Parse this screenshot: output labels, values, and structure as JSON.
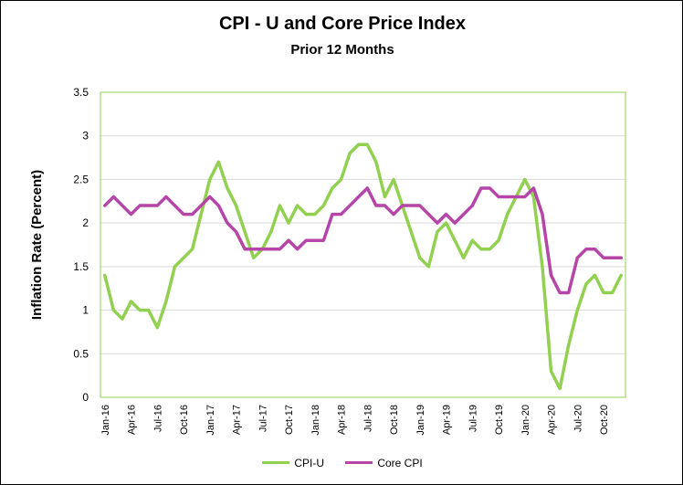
{
  "chart_data": {
    "type": "line",
    "title": "CPI - U and Core Price Index",
    "subtitle": "Prior 12 Months",
    "ylabel": "Inflation Rate (Percent)",
    "xlabel": "",
    "ylim": [
      0,
      3.5
    ],
    "yticks": [
      "0",
      "0.5",
      "1",
      "1.5",
      "2",
      "2.5",
      "3",
      "3.5"
    ],
    "xtick_labels": [
      "Jan-16",
      "Apr-16",
      "Jul-16",
      "Oct-16",
      "Jan-17",
      "Apr-17",
      "Jul-17",
      "Oct-17",
      "Jan-18",
      "Apr-18",
      "Jul-18",
      "Oct-18",
      "Jan-19",
      "Apr-19",
      "Jul-19",
      "Oct-19",
      "Jan-20",
      "Apr-20",
      "Jul-20",
      "Oct-20"
    ],
    "x": [
      "Jan-16",
      "Feb-16",
      "Mar-16",
      "Apr-16",
      "May-16",
      "Jun-16",
      "Jul-16",
      "Aug-16",
      "Sep-16",
      "Oct-16",
      "Nov-16",
      "Dec-16",
      "Jan-17",
      "Feb-17",
      "Mar-17",
      "Apr-17",
      "May-17",
      "Jun-17",
      "Jul-17",
      "Aug-17",
      "Sep-17",
      "Oct-17",
      "Nov-17",
      "Dec-17",
      "Jan-18",
      "Feb-18",
      "Mar-18",
      "Apr-18",
      "May-18",
      "Jun-18",
      "Jul-18",
      "Aug-18",
      "Sep-18",
      "Oct-18",
      "Nov-18",
      "Dec-18",
      "Jan-19",
      "Feb-19",
      "Mar-19",
      "Apr-19",
      "May-19",
      "Jun-19",
      "Jul-19",
      "Aug-19",
      "Sep-19",
      "Oct-19",
      "Nov-19",
      "Dec-19",
      "Jan-20",
      "Feb-20",
      "Mar-20",
      "Apr-20",
      "May-20",
      "Jun-20",
      "Jul-20",
      "Aug-20",
      "Sep-20",
      "Oct-20",
      "Nov-20",
      "Dec-20"
    ],
    "series": [
      {
        "name": "CPI-U",
        "color": "#92D050",
        "values": [
          1.4,
          1.0,
          0.9,
          1.1,
          1.0,
          1.0,
          0.8,
          1.1,
          1.5,
          1.6,
          1.7,
          2.1,
          2.5,
          2.7,
          2.4,
          2.2,
          1.9,
          1.6,
          1.7,
          1.9,
          2.2,
          2.0,
          2.2,
          2.1,
          2.1,
          2.2,
          2.4,
          2.5,
          2.8,
          2.9,
          2.9,
          2.7,
          2.3,
          2.5,
          2.2,
          1.9,
          1.6,
          1.5,
          1.9,
          2.0,
          1.8,
          1.6,
          1.8,
          1.7,
          1.7,
          1.8,
          2.1,
          2.3,
          2.5,
          2.3,
          1.5,
          0.3,
          0.1,
          0.6,
          1.0,
          1.3,
          1.4,
          1.2,
          1.2,
          1.4
        ]
      },
      {
        "name": "Core CPI",
        "color": "#B545A6",
        "values": [
          2.2,
          2.3,
          2.2,
          2.1,
          2.2,
          2.2,
          2.2,
          2.3,
          2.2,
          2.1,
          2.1,
          2.2,
          2.3,
          2.2,
          2.0,
          1.9,
          1.7,
          1.7,
          1.7,
          1.7,
          1.7,
          1.8,
          1.7,
          1.8,
          1.8,
          1.8,
          2.1,
          2.1,
          2.2,
          2.3,
          2.4,
          2.2,
          2.2,
          2.1,
          2.2,
          2.2,
          2.2,
          2.1,
          2.0,
          2.1,
          2.0,
          2.1,
          2.2,
          2.4,
          2.4,
          2.3,
          2.3,
          2.3,
          2.3,
          2.4,
          2.1,
          1.4,
          1.2,
          1.2,
          1.6,
          1.7,
          1.7,
          1.6,
          1.6,
          1.6
        ]
      }
    ],
    "grid": true,
    "plot_border_color": "#92D050",
    "gridline_color": "#D9D9D9",
    "legend_position": "bottom"
  }
}
